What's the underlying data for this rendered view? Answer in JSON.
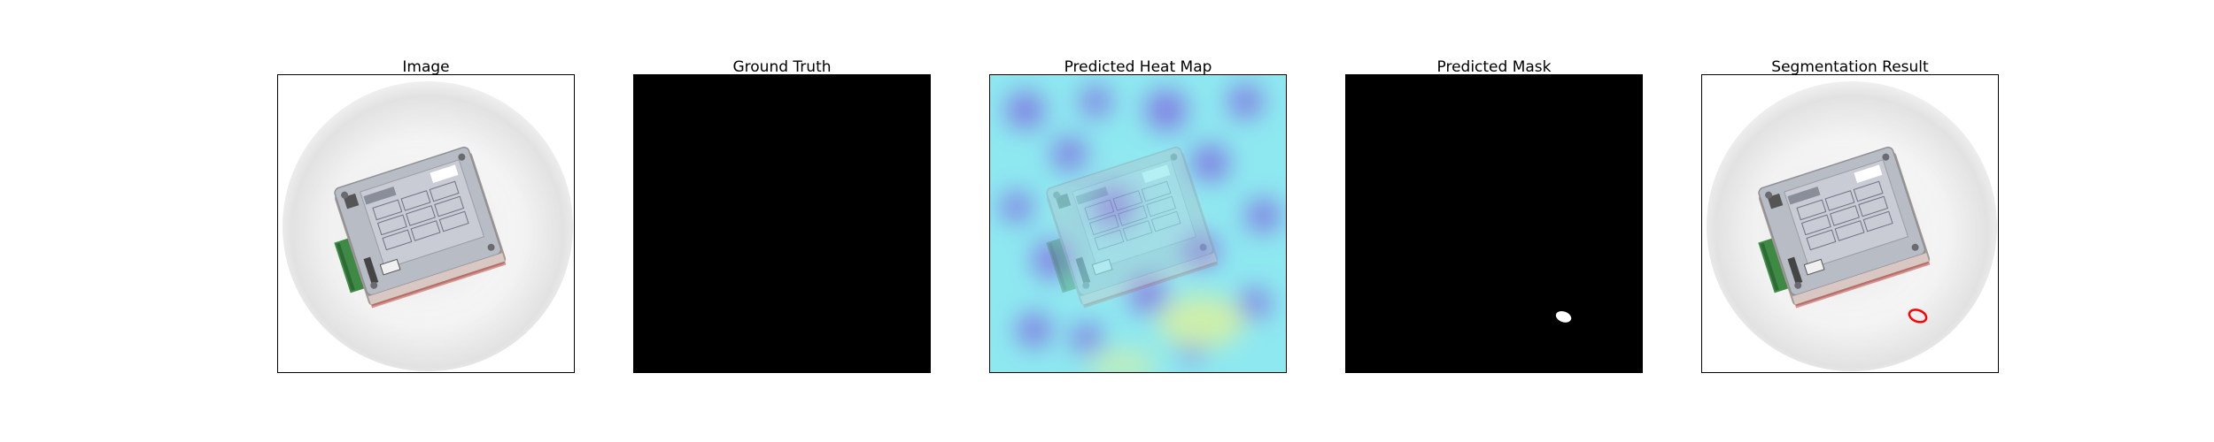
{
  "panels": [
    {
      "title": "Image"
    },
    {
      "title": "Ground Truth"
    },
    {
      "title": "Predicted Heat Map"
    },
    {
      "title": "Predicted Mask"
    },
    {
      "title": "Segmentation Result"
    }
  ],
  "colors": {
    "background": "#ffffff",
    "mask_background": "#000000",
    "mask_foreground": "#ffffff",
    "contour": "#ff0000",
    "heatmap_base": "#8ee8f0",
    "heatmap_low": "#7f6ee0",
    "heatmap_high": "#d8f0a0"
  }
}
